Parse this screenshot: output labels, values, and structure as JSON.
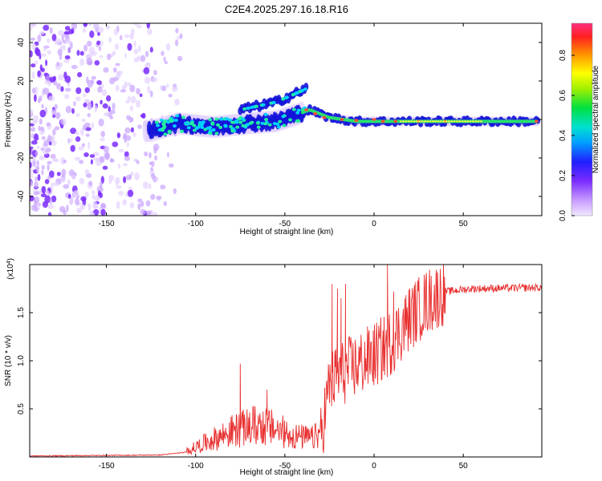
{
  "title": "C2E4.2025.297.16.18.R16",
  "colors": {
    "signal": "#e83030",
    "axis": "#000000"
  },
  "chart_data": [
    {
      "type": "heatmap",
      "name": "spectrogram",
      "xlabel": "Height of straight line (km)",
      "ylabel": "Frequency (Hz)",
      "xlim": [
        -193,
        94
      ],
      "ylim": [
        -50,
        50
      ],
      "xticks": [
        -150,
        -100,
        -50,
        0,
        50
      ],
      "xtick_labels": [
        "-150",
        "-100",
        "-50",
        "0",
        "50"
      ],
      "yticks": [
        -40,
        -20,
        0,
        20,
        40
      ],
      "ytick_labels": [
        "-40",
        "-20",
        "0",
        "20",
        "40"
      ],
      "colorbar": {
        "label": "Normalized spectral amplitude",
        "range": [
          0,
          0.96
        ],
        "ticks": [
          0.0,
          0.2,
          0.4,
          0.6,
          0.8
        ],
        "tick_labels": [
          "0.0",
          "0.2",
          "0.4",
          "0.6",
          "0.8"
        ]
      },
      "band_ridge": [
        {
          "x": -125,
          "y": -6
        },
        {
          "x": -110,
          "y": -2
        },
        {
          "x": -90,
          "y": -4
        },
        {
          "x": -70,
          "y": -2
        },
        {
          "x": -55,
          "y": -1
        },
        {
          "x": -42,
          "y": 3
        },
        {
          "x": -36,
          "y": 5
        },
        {
          "x": -25,
          "y": 1
        },
        {
          "x": -10,
          "y": -1
        },
        {
          "x": 0,
          "y": -1
        },
        {
          "x": 20,
          "y": -1
        },
        {
          "x": 60,
          "y": -1
        },
        {
          "x": 92,
          "y": -1
        }
      ],
      "upper_branch": [
        {
          "x": -75,
          "y": 5
        },
        {
          "x": -55,
          "y": 9
        },
        {
          "x": -45,
          "y": 13
        },
        {
          "x": -38,
          "y": 16
        }
      ]
    },
    {
      "type": "line",
      "name": "snr",
      "xlabel": "Height of straight line (km)",
      "ylabel": "SNR (10 * v/v)",
      "multiplier_label": "(x10",
      "multiplier_exponent": "4",
      "multiplier_close": ")",
      "xlim": [
        -193,
        94
      ],
      "ylim": [
        0,
        2.0
      ],
      "xticks": [
        -150,
        -100,
        -50,
        0,
        50
      ],
      "xtick_labels": [
        "-150",
        "-100",
        "-50",
        "0",
        "50"
      ],
      "yticks": [
        0.5,
        1.0,
        1.5
      ],
      "ytick_labels": [
        "0.5",
        "1.0",
        "1.5"
      ],
      "envelope": [
        {
          "x": -193,
          "y": 0.01
        },
        {
          "x": -120,
          "y": 0.02
        },
        {
          "x": -105,
          "y": 0.05
        },
        {
          "x": -95,
          "y": 0.12
        },
        {
          "x": -80,
          "y": 0.22
        },
        {
          "x": -65,
          "y": 0.28
        },
        {
          "x": -55,
          "y": 0.24
        },
        {
          "x": -45,
          "y": 0.18
        },
        {
          "x": -35,
          "y": 0.16
        },
        {
          "x": -30,
          "y": 0.2
        },
        {
          "x": -25,
          "y": 0.75
        },
        {
          "x": -20,
          "y": 0.85
        },
        {
          "x": -10,
          "y": 0.95
        },
        {
          "x": 0,
          "y": 1.05
        },
        {
          "x": 10,
          "y": 1.2
        },
        {
          "x": 20,
          "y": 1.45
        },
        {
          "x": 30,
          "y": 1.62
        },
        {
          "x": 40,
          "y": 1.72
        },
        {
          "x": 55,
          "y": 1.75
        },
        {
          "x": 94,
          "y": 1.76
        }
      ],
      "spikes": [
        {
          "x": -75,
          "y": 0.97
        },
        {
          "x": -60,
          "y": 0.7
        },
        {
          "x": -23.5,
          "y": 1.8
        },
        {
          "x": -20.5,
          "y": 1.75
        },
        {
          "x": -18.5,
          "y": 1.65
        },
        {
          "x": -16,
          "y": 1.8
        },
        {
          "x": 7.5,
          "y": 2.0
        },
        {
          "x": 11,
          "y": 1.72
        }
      ]
    }
  ]
}
